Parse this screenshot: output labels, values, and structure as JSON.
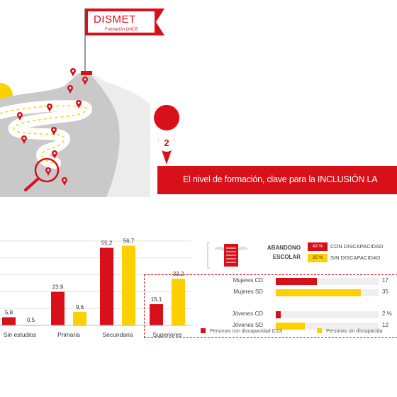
{
  "logo": {
    "name": "DISMET",
    "subtitle": "Fundación ONCE"
  },
  "step_number": "2",
  "banner_text": "El nivel de formación, clave para la INCLUSIÓN LA",
  "colors": {
    "cd": "#d7101a",
    "sd": "#fdd000",
    "accent": "#d7101a",
    "mountain": "#c9c9c9"
  },
  "chart_data": [
    {
      "type": "bar",
      "categories": [
        "Sin estudios",
        "Primaria",
        "Secundaria",
        "Superiores"
      ],
      "series": [
        {
          "name": "Personas con discapacidad (CD)",
          "values": [
            5.8,
            23.9,
            55.2,
            15.1
          ]
        },
        {
          "name": "Personas sin discapacida",
          "values": [
            0.5,
            9.6,
            56.7,
            33.2
          ]
        }
      ],
      "value_labels": [
        [
          "5,8",
          "23,9",
          "55,2",
          "15,1"
        ],
        [
          "0,5",
          "9,6",
          "56,7",
          "33,2"
        ]
      ],
      "ylim": [
        0,
        60
      ],
      "grid": true
    },
    {
      "type": "bar",
      "orientation": "horizontal",
      "categories": [
        "Mujeres CD",
        "Mujeres SD",
        "Jóvenes CD",
        "Jóvenes SD"
      ],
      "values": [
        17,
        35,
        2,
        12
      ],
      "value_labels": [
        "17",
        "35",
        "2 %",
        "12"
      ]
    }
  ],
  "abandono": {
    "title_line1": "ABANDONO",
    "title_line2": "ESCOLAR",
    "cd_value": "43 %",
    "cd_label": "CON DISCAPACIDAD",
    "sd_value": "25 %",
    "sd_label": "SIN DISCAPACIDAD"
  }
}
